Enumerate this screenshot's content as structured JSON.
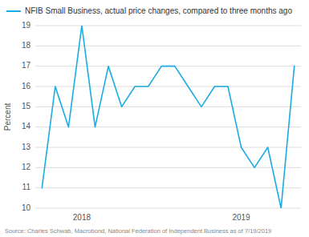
{
  "chart_data": {
    "type": "line",
    "title": "NFIB Small Business, actual price changes, compared to three months ago",
    "ylabel": "Percent",
    "source": "Source: Charles Schwab, Macrobond, National Federation of Independent Business as of 7/19/2019",
    "categories": [
      null,
      null,
      null,
      "2018",
      null,
      null,
      null,
      null,
      null,
      null,
      null,
      null,
      null,
      null,
      null,
      "2019",
      null,
      null,
      null,
      null
    ],
    "values": [
      11,
      16,
      14,
      19,
      14,
      17,
      15,
      16,
      16,
      17,
      17,
      16,
      15,
      16,
      16,
      13,
      12,
      13,
      10,
      17
    ],
    "color": "#1aace3",
    "ylim": [
      10,
      19
    ],
    "yticks": [
      10,
      11,
      12,
      13,
      14,
      15,
      16,
      17,
      18,
      19
    ],
    "grid": true
  }
}
